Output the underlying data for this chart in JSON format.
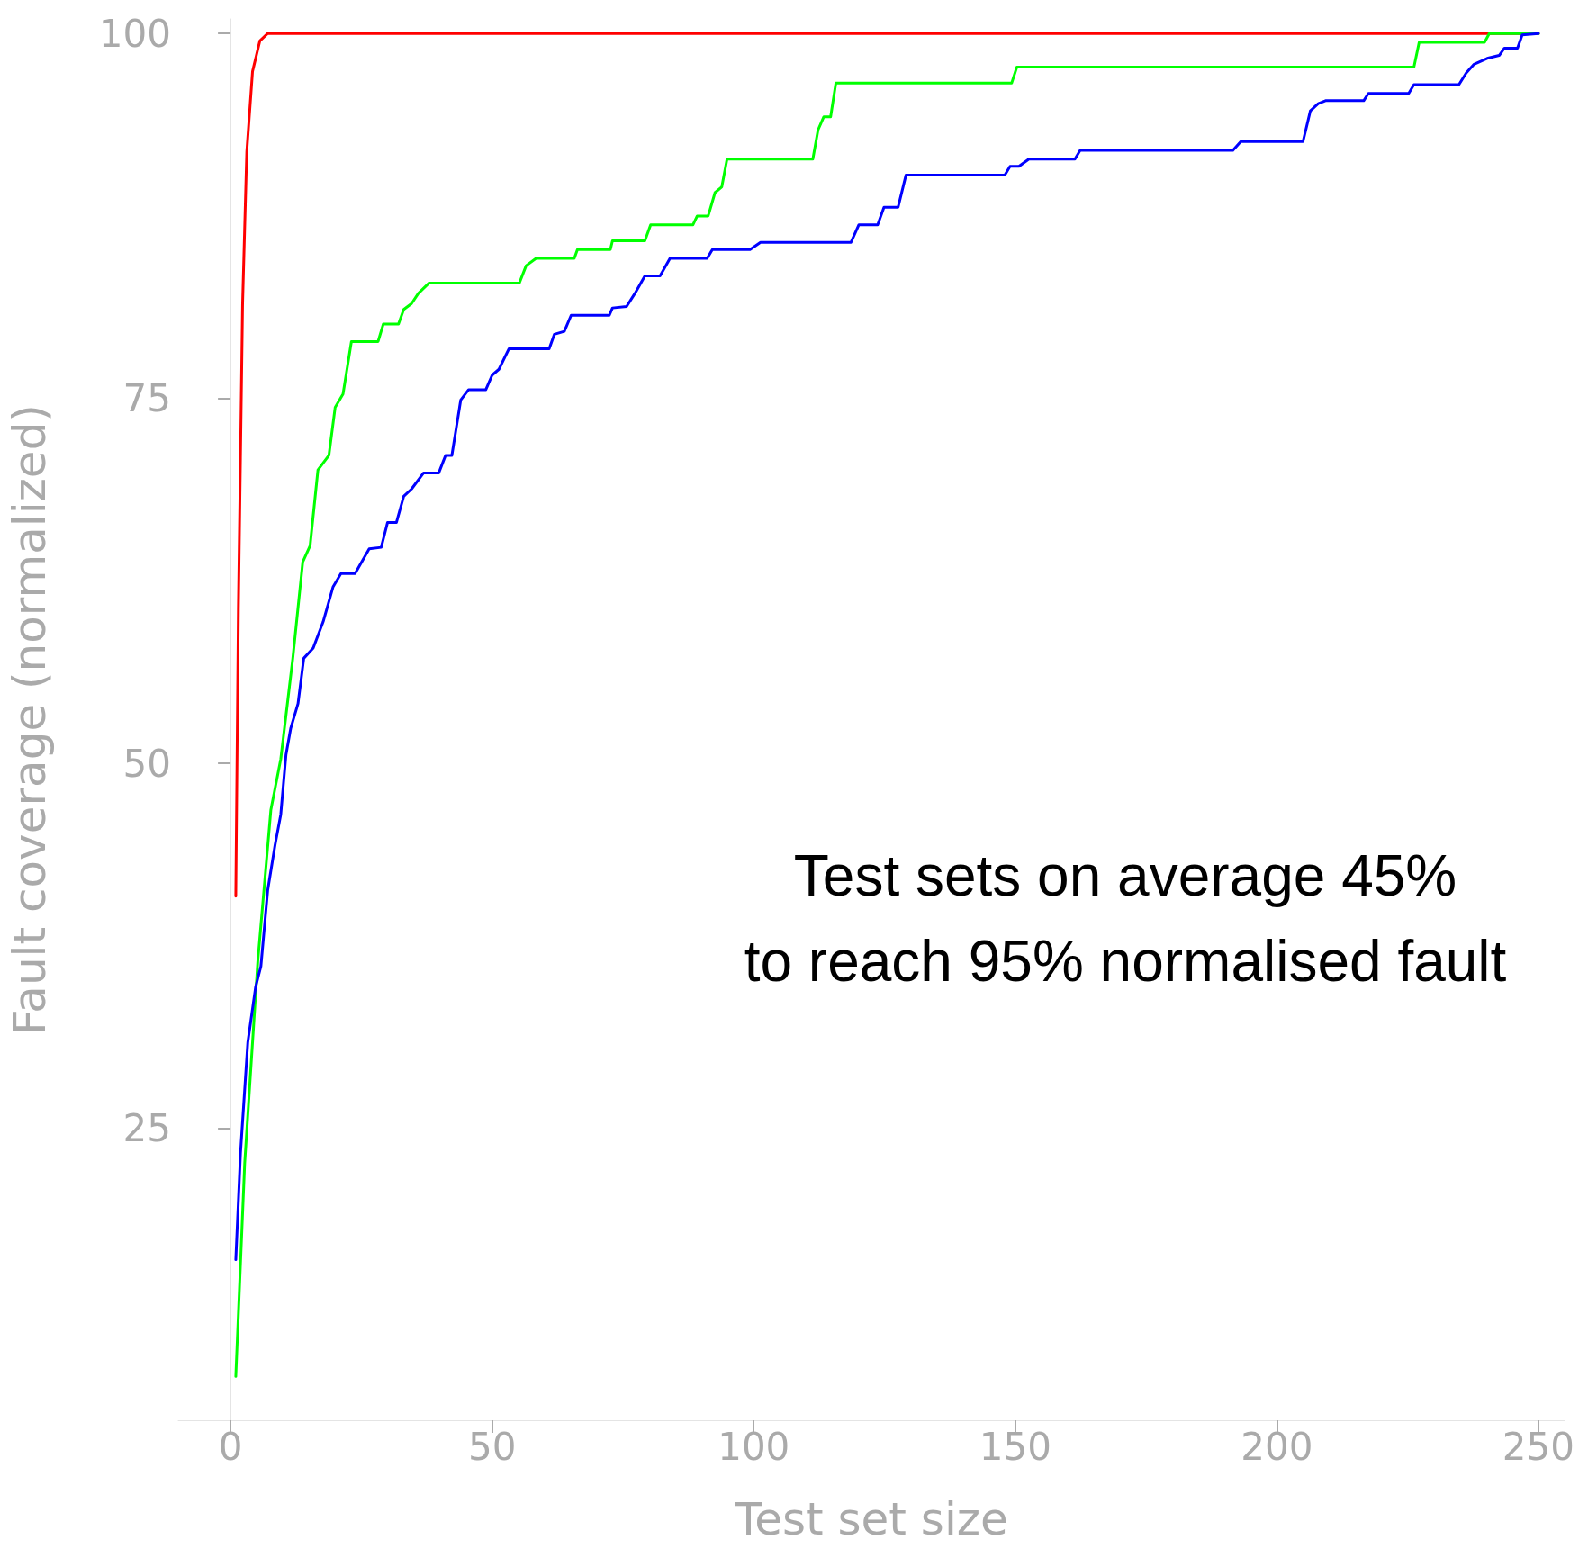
{
  "chart_data": {
    "type": "line",
    "xlabel": "Test set size",
    "ylabel": "Fault coverage (normalized)",
    "xlim": [
      -10,
      255
    ],
    "xticks": [
      0,
      50,
      100,
      150,
      200,
      250
    ],
    "ylim": [
      5,
      101
    ],
    "yticks": [
      25,
      50,
      75,
      100
    ],
    "grid": false,
    "marker": "none",
    "line_style": "solid",
    "annotations": [
      "Test sets on average 45%\nto reach 95% normalised fault"
    ],
    "series": [
      {
        "color": "#ff0000",
        "x": [
          1,
          1.5,
          2.3,
          3.1,
          4.2,
          5.6,
          7.1,
          250
        ],
        "values": [
          40.9,
          60.7,
          81.5,
          91.9,
          97.4,
          99.5,
          100,
          100
        ]
      },
      {
        "color": "#00ff00",
        "x": [
          1,
          2.7,
          5.2,
          7.7,
          9.6,
          11.9,
          13.8,
          15.2,
          16.7,
          18.8,
          20.0,
          21.5,
          23.1,
          28.2,
          29.2,
          32.1,
          33.1,
          34.6,
          35.9,
          37.9,
          55.2,
          56.5,
          58.4,
          65.7,
          66.3,
          72.6,
          73.0,
          79.2,
          80.3,
          88.4,
          89.2,
          91.3,
          92.6,
          93.9,
          94.9,
          111.3,
          112.3,
          113.4,
          114.7,
          115.7,
          149.3,
          150.3,
          226.2,
          227.2,
          239.7,
          240.6,
          250
        ],
        "values": [
          8.0,
          22.6,
          36.4,
          46.8,
          50.3,
          57.2,
          63.8,
          64.9,
          70.1,
          71.1,
          74.4,
          75.3,
          78.9,
          78.9,
          80.1,
          80.1,
          81.1,
          81.5,
          82.2,
          82.9,
          82.9,
          84.1,
          84.6,
          84.6,
          85.2,
          85.2,
          85.8,
          85.8,
          86.9,
          86.9,
          87.5,
          87.5,
          89.1,
          89.5,
          91.4,
          91.4,
          93.4,
          94.3,
          94.3,
          96.6,
          96.6,
          97.7,
          97.7,
          99.4,
          99.4,
          100,
          100
        ]
      },
      {
        "color": "#0000ff",
        "x": [
          1,
          1.9,
          3.3,
          4.8,
          5.8,
          7.1,
          8.5,
          9.6,
          10.6,
          11.5,
          12.9,
          14.0,
          15.8,
          17.7,
          19.6,
          21.1,
          23.8,
          26.5,
          28.8,
          30.0,
          31.7,
          33.1,
          34.6,
          36.9,
          39.8,
          41.1,
          42.3,
          44.0,
          45.5,
          48.8,
          50.0,
          51.3,
          53.2,
          60.9,
          61.9,
          63.8,
          65.1,
          72.4,
          73.0,
          75.7,
          77.3,
          79.2,
          82.1,
          84.0,
          91.1,
          92.1,
          99.3,
          101.3,
          118.6,
          120.1,
          123.7,
          124.9,
          127.6,
          129.1,
          148.0,
          149.0,
          150.7,
          152.6,
          161.4,
          162.4,
          191.6,
          193.1,
          205.0,
          206.4,
          207.9,
          209.3,
          216.6,
          217.5,
          225.2,
          226.2,
          234.8,
          236.2,
          237.7,
          240.2,
          242.5,
          243.5,
          246.0,
          246.9,
          250
        ],
        "values": [
          16.0,
          23.3,
          30.9,
          34.7,
          36.1,
          41.3,
          44.4,
          46.5,
          50.6,
          52.4,
          54.1,
          57.2,
          57.9,
          59.7,
          62.1,
          63.0,
          63.0,
          64.7,
          64.8,
          66.5,
          66.5,
          68.3,
          68.8,
          69.9,
          69.9,
          71.1,
          71.1,
          74.9,
          75.6,
          75.6,
          76.6,
          77.0,
          78.4,
          78.4,
          79.4,
          79.6,
          80.7,
          80.7,
          81.2,
          81.3,
          82.2,
          83.4,
          83.4,
          84.6,
          84.6,
          85.2,
          85.2,
          85.7,
          85.7,
          86.9,
          86.9,
          88.1,
          88.1,
          90.3,
          90.3,
          90.9,
          90.9,
          91.4,
          91.4,
          92.0,
          92.0,
          92.6,
          92.6,
          94.7,
          95.2,
          95.4,
          95.4,
          95.9,
          95.9,
          96.5,
          96.5,
          97.3,
          97.9,
          98.3,
          98.5,
          99.0,
          99.0,
          99.9,
          100
        ]
      }
    ]
  }
}
